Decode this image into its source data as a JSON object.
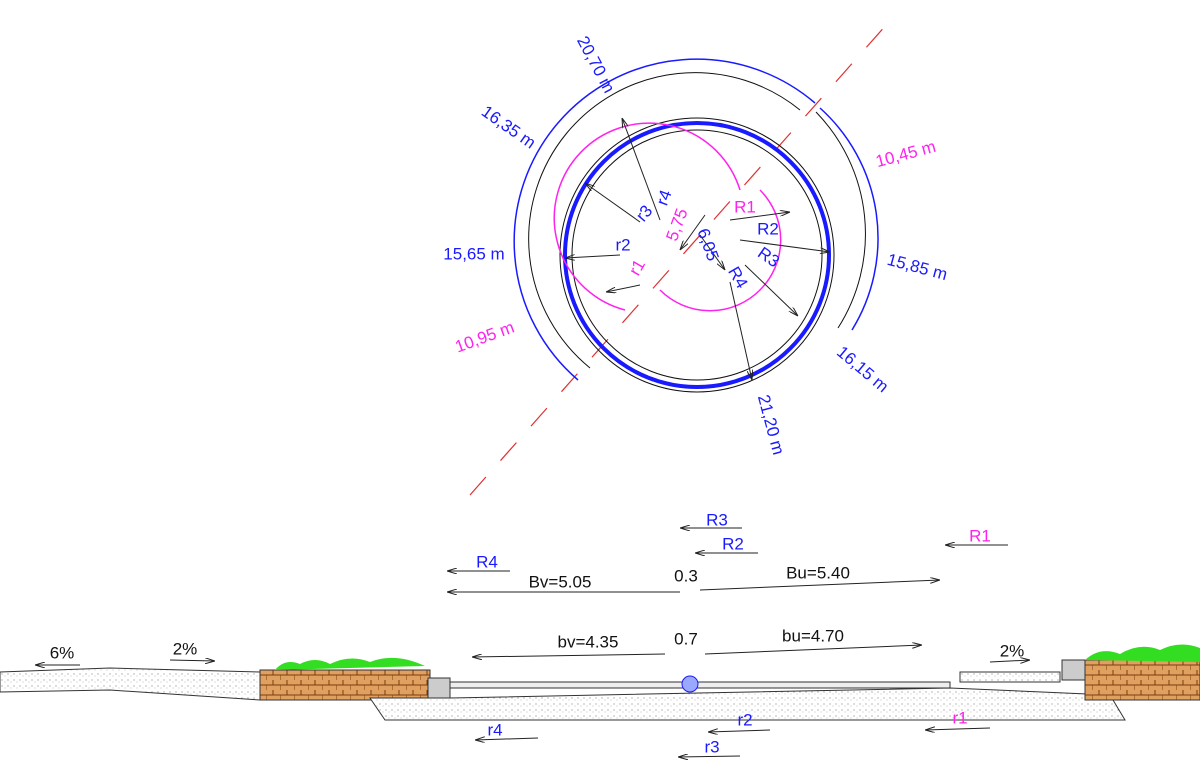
{
  "plan": {
    "dimensions": [
      "20,70 m",
      "16,35 m",
      "15,65 m",
      "10,95 m",
      "10,45 m",
      "15,85 m",
      "16,15 m",
      "21,20 m"
    ],
    "radii": [
      "r4",
      "r3",
      "r2",
      "r1",
      "R1",
      "R2",
      "R3",
      "R4",
      "5,75",
      "6,05"
    ]
  },
  "section": {
    "radius_marks": [
      "R3",
      "R2",
      "R1",
      "R4",
      "r4",
      "r2",
      "r1",
      "r3"
    ],
    "dimensions": [
      "Bv=5.05",
      "0.3",
      "Bu=5.40",
      "bv=4.35",
      "0.7",
      "bu=4.70"
    ],
    "slopes": [
      "6%",
      "2%",
      "2%"
    ]
  }
}
